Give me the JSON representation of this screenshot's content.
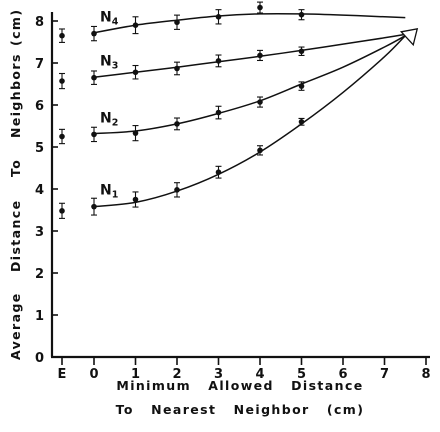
{
  "chart_data": {
    "type": "line",
    "title": "",
    "xlabel_lines": [
      "Minimum   Allowed   Distance",
      "To   Nearest   Neighbor   (cm)"
    ],
    "ylabel_words": [
      "Average",
      "Distance",
      "To",
      "Neighbors",
      "(cm)"
    ],
    "xlim": [
      0,
      8
    ],
    "ylim": [
      0,
      8
    ],
    "x_ticks": [
      0,
      1,
      2,
      3,
      4,
      5,
      6,
      7,
      8
    ],
    "y_ticks": [
      0,
      1,
      2,
      3,
      4,
      5,
      6,
      7,
      8
    ],
    "extra_x_category": "E",
    "grid": false,
    "legend": "none",
    "series": [
      {
        "name": "N",
        "subscript": "1",
        "points": [
          {
            "x": 0,
            "y": 3.58,
            "err": 0.2
          },
          {
            "x": 1,
            "y": 3.75,
            "err": 0.18
          },
          {
            "x": 2,
            "y": 3.98,
            "err": 0.17
          },
          {
            "x": 3,
            "y": 4.4,
            "err": 0.14
          },
          {
            "x": 4,
            "y": 4.92,
            "err": 0.11
          },
          {
            "x": 5,
            "y": 5.6,
            "err": 0.08
          }
        ],
        "E": {
          "y": 3.48,
          "err": 0.18
        },
        "curve": [
          [
            0,
            3.58
          ],
          [
            1,
            3.68
          ],
          [
            2,
            3.95
          ],
          [
            3,
            4.35
          ],
          [
            4,
            4.88
          ],
          [
            5,
            5.55
          ],
          [
            6,
            6.3
          ],
          [
            7,
            7.15
          ],
          [
            7.5,
            7.65
          ]
        ]
      },
      {
        "name": "N",
        "subscript": "2",
        "points": [
          {
            "x": 0,
            "y": 5.3,
            "err": 0.17
          },
          {
            "x": 1,
            "y": 5.33,
            "err": 0.18
          },
          {
            "x": 2,
            "y": 5.55,
            "err": 0.14
          },
          {
            "x": 3,
            "y": 5.82,
            "err": 0.15
          },
          {
            "x": 4,
            "y": 6.07,
            "err": 0.12
          },
          {
            "x": 5,
            "y": 6.45,
            "err": 0.1
          }
        ],
        "E": {
          "y": 5.25,
          "err": 0.17
        },
        "curve": [
          [
            0,
            5.32
          ],
          [
            1,
            5.38
          ],
          [
            2,
            5.55
          ],
          [
            3,
            5.8
          ],
          [
            4,
            6.1
          ],
          [
            5,
            6.5
          ],
          [
            6,
            6.9
          ],
          [
            7,
            7.38
          ],
          [
            7.5,
            7.65
          ]
        ]
      },
      {
        "name": "N",
        "subscript": "3",
        "points": [
          {
            "x": 0,
            "y": 6.65,
            "err": 0.16
          },
          {
            "x": 1,
            "y": 6.78,
            "err": 0.16
          },
          {
            "x": 2,
            "y": 6.87,
            "err": 0.15
          },
          {
            "x": 3,
            "y": 7.05,
            "err": 0.14
          },
          {
            "x": 4,
            "y": 7.18,
            "err": 0.12
          },
          {
            "x": 5,
            "y": 7.28,
            "err": 0.1
          }
        ],
        "E": {
          "y": 6.57,
          "err": 0.18
        },
        "curve": [
          [
            0,
            6.66
          ],
          [
            1,
            6.78
          ],
          [
            2,
            6.9
          ],
          [
            3,
            7.03
          ],
          [
            4,
            7.16
          ],
          [
            5,
            7.3
          ],
          [
            6,
            7.45
          ],
          [
            7,
            7.6
          ],
          [
            7.5,
            7.68
          ]
        ]
      },
      {
        "name": "N",
        "subscript": "4",
        "points": [
          {
            "x": 0,
            "y": 7.7,
            "err": 0.17
          },
          {
            "x": 1,
            "y": 7.9,
            "err": 0.2
          },
          {
            "x": 2,
            "y": 7.97,
            "err": 0.17
          },
          {
            "x": 3,
            "y": 8.1,
            "err": 0.17
          },
          {
            "x": 4,
            "y": 8.32,
            "err": 0.13
          },
          {
            "x": 5,
            "y": 8.15,
            "err": 0.12
          }
        ],
        "E": {
          "y": 7.65,
          "err": 0.16
        },
        "curve": [
          [
            0,
            7.72
          ],
          [
            1,
            7.9
          ],
          [
            2,
            8.02
          ],
          [
            3,
            8.12
          ],
          [
            4,
            8.17
          ],
          [
            5,
            8.17
          ],
          [
            6,
            8.14
          ],
          [
            7,
            8.1
          ],
          [
            7.5,
            8.08
          ]
        ]
      }
    ],
    "endpoint_marker": {
      "x": 7.5,
      "y": 7.6,
      "shape": "triangle"
    }
  }
}
